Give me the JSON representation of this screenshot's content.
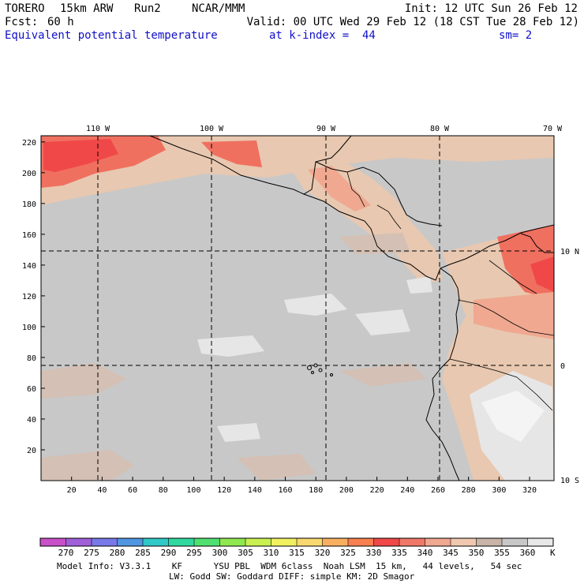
{
  "header": {
    "model": "TORERO",
    "resolution": "15km ARW",
    "run": "Run2",
    "org": "NCAR/MMM",
    "init": "Init: 12 UTC Sun 26 Feb 12",
    "fcst_label": "Fcst:",
    "fcst_value": "60 h",
    "valid": "Valid: 00 UTC Wed 29 Feb 12 (18 CST Tue 28 Feb 12)",
    "field": "Equivalent potential temperature",
    "level": "at k-index =  44",
    "smoothing": "sm= 2"
  },
  "map": {
    "lon_labels": [
      "110 W",
      "100 W",
      "90 W",
      "80 W",
      "70 W"
    ],
    "lat_labels": [
      "10 N",
      "0",
      "10 S"
    ],
    "x_ticks": [
      "20",
      "40",
      "60",
      "80",
      "100",
      "120",
      "140",
      "160",
      "180",
      "200",
      "220",
      "240",
      "260",
      "280",
      "300",
      "320"
    ],
    "y_ticks": [
      "20",
      "40",
      "60",
      "80",
      "100",
      "120",
      "140",
      "160",
      "180",
      "200",
      "220"
    ],
    "colors": {
      "background_field": "#c8c8c8",
      "land_warm": "#e8c8b0",
      "warm_high": "#f07060",
      "hot": "#f04848",
      "cool_light": "#e6e6e6",
      "coast": "#000000"
    }
  },
  "colorbar": {
    "labels": [
      "270",
      "275",
      "280",
      "285",
      "290",
      "295",
      "300",
      "305",
      "310",
      "315",
      "320",
      "325",
      "330",
      "335",
      "340",
      "345",
      "350",
      "355",
      "360"
    ],
    "unit": "K",
    "colors": [
      "#c850c8",
      "#a060d8",
      "#7878e8",
      "#5096e0",
      "#30c8c8",
      "#30d8a0",
      "#50e070",
      "#90e850",
      "#c8f050",
      "#f0f060",
      "#f8d870",
      "#f8b060",
      "#f88050",
      "#f04848",
      "#f07868",
      "#f0a890",
      "#f0c8b0",
      "#c8b4a8",
      "#c8c8c8",
      "#e8e8e8"
    ]
  },
  "footer": {
    "line1": "Model Info: V3.3.1    KF      YSU PBL  WDM 6class  Noah LSM  15 km,   44 levels,   54 sec",
    "line2": "LW: Godd SW: Goddard DIFF: simple KM: 2D Smagor"
  }
}
